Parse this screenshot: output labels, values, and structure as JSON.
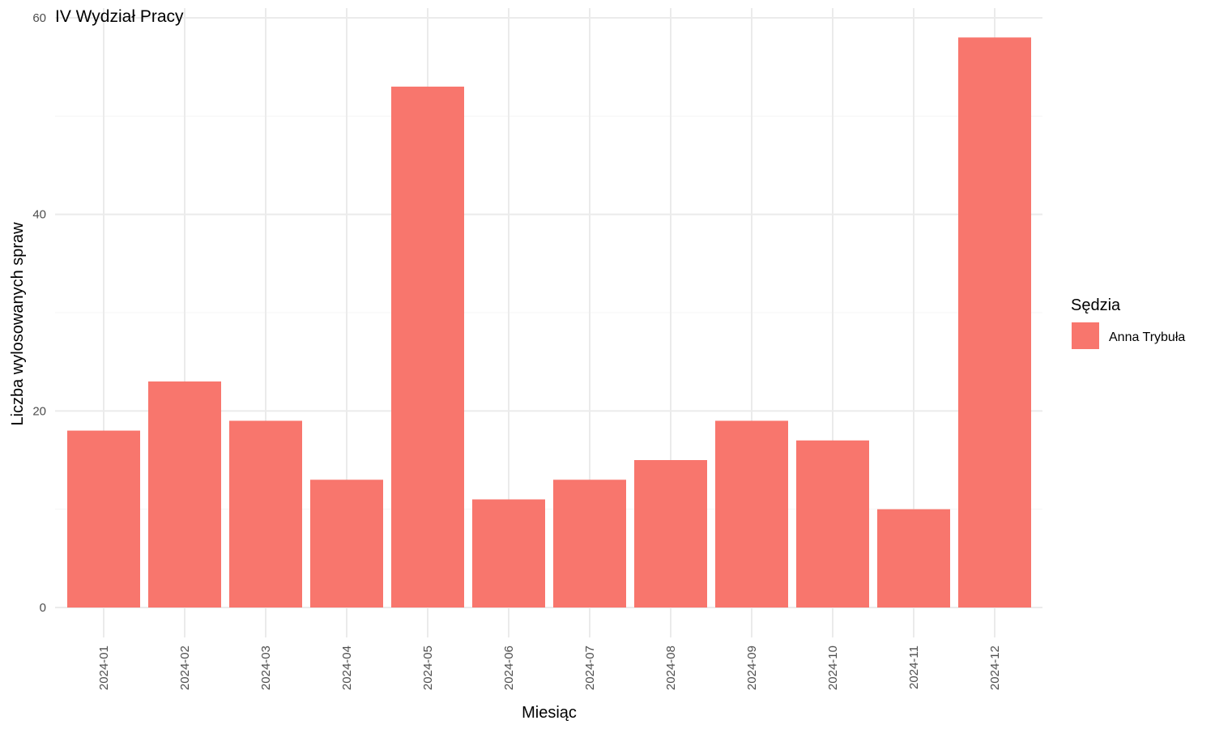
{
  "chart_data": {
    "type": "bar",
    "title": "IV Wydział Pracy",
    "xlabel": "Miesiąc",
    "ylabel": "Liczba wylosowanych spraw",
    "categories": [
      "2024-01",
      "2024-02",
      "2024-03",
      "2024-04",
      "2024-05",
      "2024-06",
      "2024-07",
      "2024-08",
      "2024-09",
      "2024-10",
      "2024-11",
      "2024-12"
    ],
    "series": [
      {
        "name": "Anna Trybuła",
        "color": "#F8766D",
        "values": [
          18,
          23,
          19,
          13,
          53,
          11,
          13,
          15,
          19,
          17,
          10,
          58
        ]
      }
    ],
    "ylim": [
      0,
      60
    ],
    "yticks": [
      0,
      20,
      40,
      60
    ],
    "grid": true,
    "legend": {
      "title": "Sędzia",
      "position": "right"
    }
  }
}
